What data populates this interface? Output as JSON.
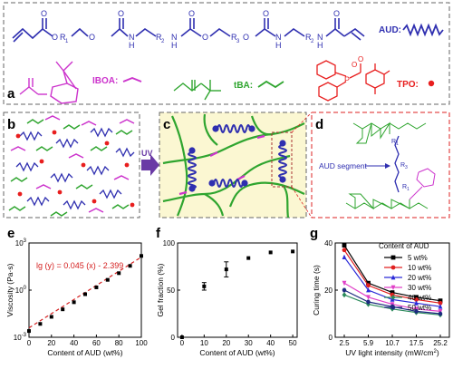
{
  "panels": {
    "a": {
      "label": "a",
      "legend": {
        "aud": "AUD:",
        "iboa": "IBOA:",
        "tba": "tBA:",
        "tpo": "TPO:"
      },
      "atoms": {
        "R1": "R",
        "R1_sub": "1",
        "R2": "R",
        "R2_sub": "2",
        "R3": "R",
        "R3_sub": "3",
        "N": "N",
        "H": "H",
        "O": "O",
        "P": "P"
      }
    },
    "b": {
      "label": "b"
    },
    "c": {
      "label": "c"
    },
    "d": {
      "label": "d",
      "segment_label": "AUD segment",
      "atoms": {
        "R1": "R",
        "R1_sub": "1",
        "R3": "R",
        "R3_sub": "3"
      }
    },
    "uv_arrow": {
      "label": "UV"
    },
    "e": {
      "label": "e"
    },
    "f": {
      "label": "f"
    },
    "g": {
      "label": "g"
    }
  },
  "colors": {
    "aud_blue": "#2f2fb0",
    "iboa_magenta": "#cc33cc",
    "tba_green": "#2fa52f",
    "tpo_red": "#e81e1e",
    "panel_yellow": "#fbf7d2",
    "uv_purple": "#6a3aa5"
  },
  "chart_data": [
    {
      "panel": "e",
      "type": "scatter",
      "xlabel": "Content of AUD (wt%)",
      "ylabel": "Viscosity (Pa·s)",
      "x_ticks": [
        "0",
        "20",
        "40",
        "60",
        "80",
        "100"
      ],
      "y_ticks": [
        {
          "base": "10",
          "exp": "-3"
        },
        {
          "base": "10",
          "exp": "0"
        },
        {
          "base": "10",
          "exp": "3"
        }
      ],
      "xlim": [
        0,
        100
      ],
      "ylim_log10": [
        -3,
        3
      ],
      "y_scale": "log",
      "x": [
        0,
        10,
        20,
        30,
        40,
        50,
        60,
        70,
        80,
        90,
        100
      ],
      "values": [
        0.0025,
        0.0071,
        0.02,
        0.06,
        0.17,
        0.55,
        1.5,
        4.5,
        12,
        35,
        150
      ],
      "fit": {
        "label": "lg (y) = 0.045 (x) - 2.399",
        "slope": 0.045,
        "intercept": -2.399,
        "style": "dashed",
        "color": "#d42020"
      }
    },
    {
      "panel": "f",
      "type": "scatter",
      "xlabel": "Content of AUD (wt%)",
      "ylabel": "Gel fraction (%)",
      "x_ticks": [
        "0",
        "10",
        "20",
        "30",
        "40",
        "50"
      ],
      "y_ticks": [
        "0",
        "50",
        "100"
      ],
      "xlim": [
        -2,
        52
      ],
      "ylim": [
        0,
        100
      ],
      "x": [
        0,
        10,
        20,
        30,
        40,
        50
      ],
      "values": [
        0,
        54,
        72,
        84,
        90,
        91
      ],
      "error": [
        0,
        4,
        8,
        0,
        0,
        0
      ]
    },
    {
      "panel": "g",
      "type": "line",
      "xlabel": "UV light intensity (mW/cm",
      "xlabel_sup": "2",
      "xlabel_close": ")",
      "ylabel": "Curing time (s)",
      "legend_title": "Content of AUD",
      "legend_position": "top-right",
      "x": [
        2.5,
        5.9,
        10.7,
        17.5,
        25.2
      ],
      "x_ticks": [
        "2.5",
        "5.9",
        "10.7",
        "17.5",
        "25.2"
      ],
      "y_ticks": [
        "0",
        "20",
        "40"
      ],
      "ylim": [
        0,
        40
      ],
      "series": [
        {
          "name": "5 wt%",
          "color": "#000000",
          "values": [
            39,
            23,
            19,
            17,
            15.5
          ]
        },
        {
          "name": "10 wt%",
          "color": "#e02020",
          "values": [
            37,
            22,
            18,
            16,
            14.5
          ]
        },
        {
          "name": "20 wt%",
          "color": "#2a2ad8",
          "values": [
            34,
            20,
            16,
            14.5,
            13
          ]
        },
        {
          "name": "30 wt%",
          "color": "#e040c8",
          "values": [
            23,
            17,
            14,
            12,
            11
          ]
        },
        {
          "name": "40 wt%",
          "color": "#2a8a5a",
          "values": [
            18,
            14,
            12,
            10.5,
            9.5
          ]
        },
        {
          "name": "50 wt%",
          "color": "#1e2a80",
          "values": [
            20,
            15,
            13,
            11,
            10
          ]
        }
      ]
    }
  ]
}
